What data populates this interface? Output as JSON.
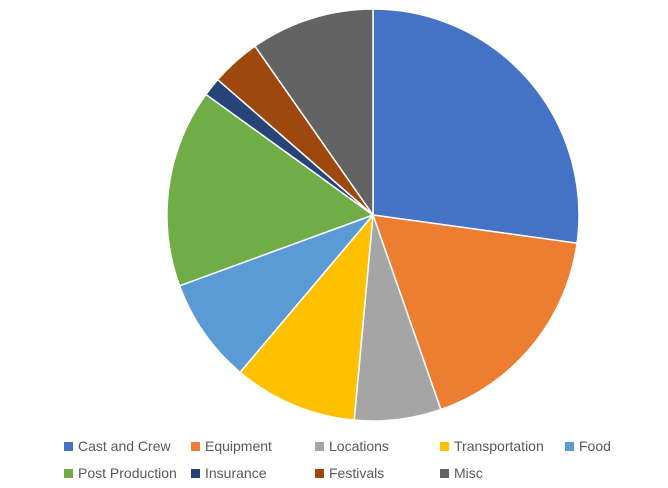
{
  "chart_data": {
    "type": "pie",
    "title": "",
    "legend_position": "bottom",
    "slices": [
      {
        "label": "Cast and Crew",
        "value": 28,
        "color": "#4472C4"
      },
      {
        "label": "Equipment",
        "value": 18,
        "color": "#ED7D31"
      },
      {
        "label": "Locations",
        "value": 7,
        "color": "#A5A5A5"
      },
      {
        "label": "Transportation",
        "value": 10,
        "color": "#FFC000"
      },
      {
        "label": "Food",
        "value": 8.5,
        "color": "#5B9BD5"
      },
      {
        "label": "Post Production",
        "value": 16,
        "color": "#70AD47"
      },
      {
        "label": "Insurance",
        "value": 1.5,
        "color": "#264478"
      },
      {
        "label": "Festivals",
        "value": 4,
        "color": "#9E480E"
      },
      {
        "label": "Misc",
        "value": 10,
        "color": "#636363"
      }
    ]
  }
}
